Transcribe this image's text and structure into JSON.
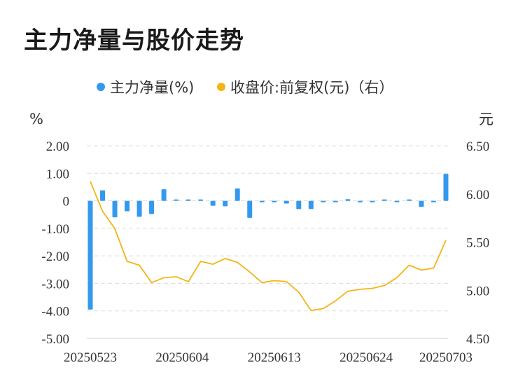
{
  "title": "主力净量与股价走势",
  "legend": {
    "series1": "主力净量(%)",
    "series2": "收盘价:前复权(元)（右）"
  },
  "units": {
    "left": "%",
    "right": "元"
  },
  "colors": {
    "bar": "#3399ee",
    "line": "#f5b416",
    "grid": "#dddddd"
  },
  "chart_data": {
    "type": "bar+line",
    "x_tick_labels": [
      "20250523",
      "20250604",
      "20250613",
      "20250624",
      "20250703"
    ],
    "left_axis": {
      "ticks": [
        "2.00",
        "1.00",
        "0",
        "-1.00",
        "-2.00",
        "-3.00",
        "-4.00",
        "-5.00"
      ],
      "ylim": [
        -5,
        2
      ]
    },
    "right_axis": {
      "ticks": [
        "6.50",
        "6.00",
        "5.50",
        "5.00",
        "4.50"
      ],
      "ylim": [
        4.5,
        6.5
      ]
    },
    "series": [
      {
        "name": "主力净量(%)",
        "type": "bar",
        "axis": "left",
        "values": [
          -3.95,
          0.38,
          -0.6,
          -0.38,
          -0.58,
          -0.48,
          0.42,
          0.05,
          0.0,
          0.05,
          -0.18,
          -0.2,
          0.45,
          -0.62,
          -0.04,
          -0.05,
          -0.1,
          -0.3,
          -0.3,
          -0.05,
          -0.05,
          0.06,
          -0.03,
          -0.02,
          0.03,
          -0.03,
          0.03,
          -0.22,
          -0.01,
          0.98
        ]
      },
      {
        "name": "收盘价:前复权(元)（右）",
        "type": "line",
        "axis": "right",
        "values": [
          6.13,
          5.82,
          5.64,
          5.3,
          5.26,
          5.08,
          5.13,
          5.14,
          5.09,
          5.3,
          5.27,
          5.33,
          5.29,
          5.19,
          5.08,
          5.1,
          5.09,
          4.98,
          4.79,
          4.81,
          4.89,
          4.99,
          5.01,
          5.02,
          5.05,
          5.13,
          5.26,
          5.21,
          5.23,
          5.52
        ]
      }
    ]
  }
}
